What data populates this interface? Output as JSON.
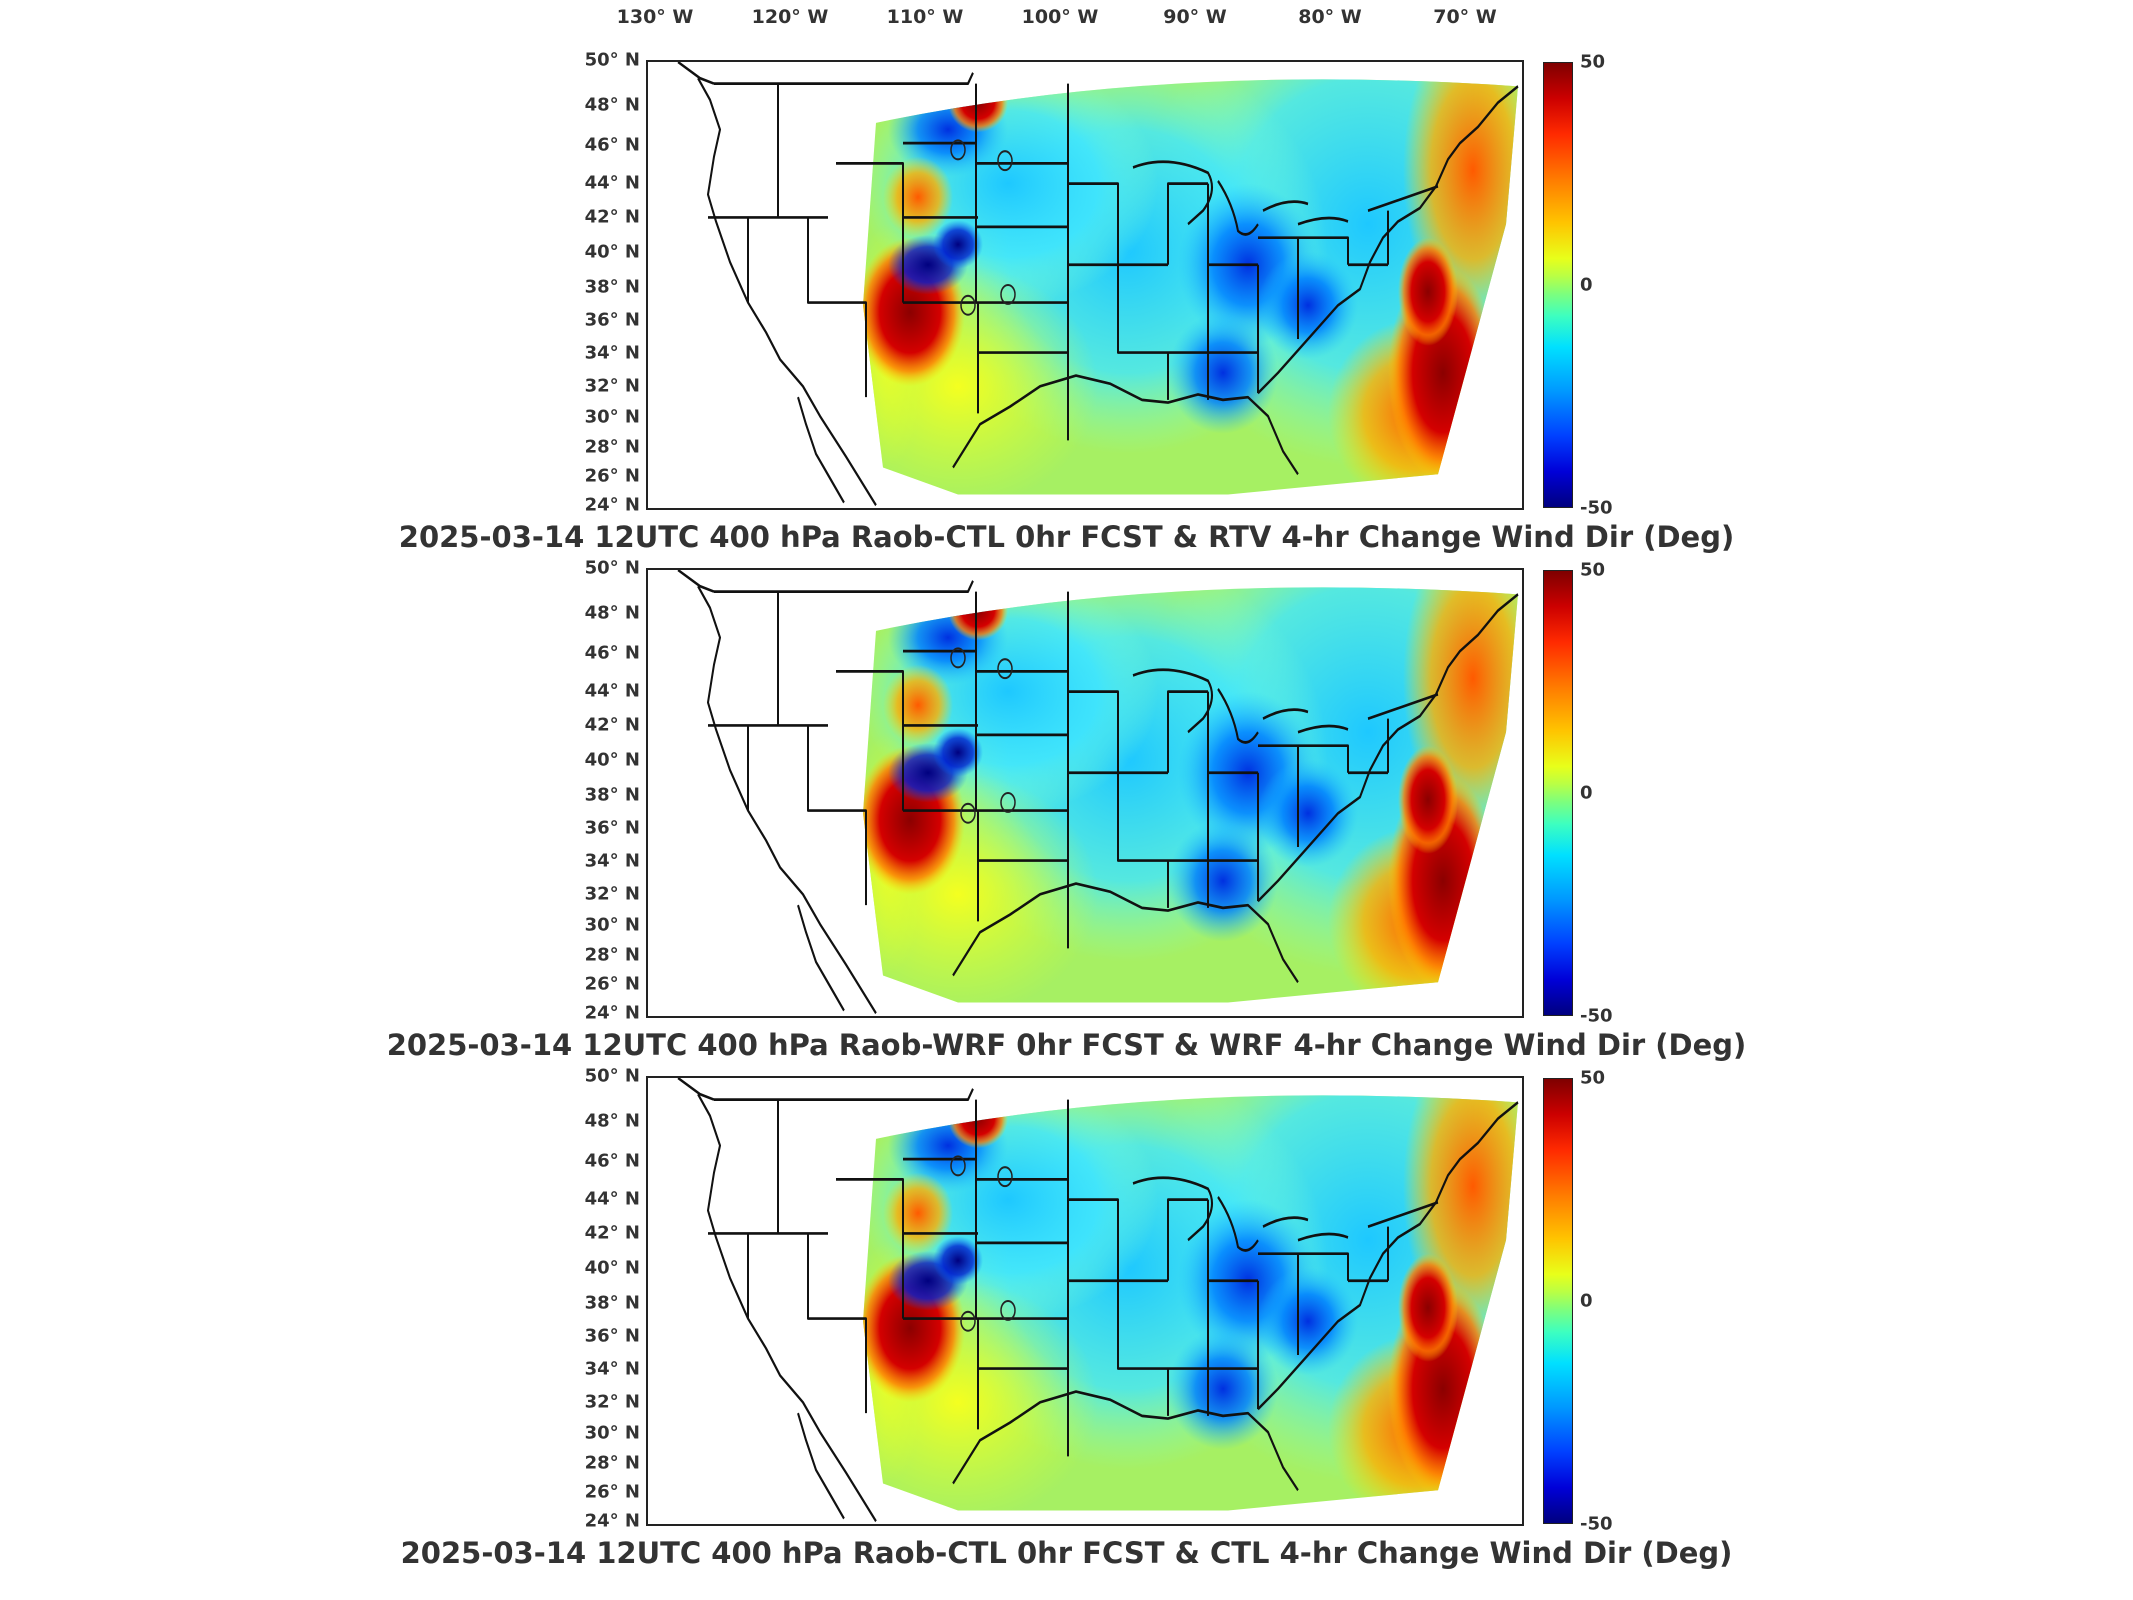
{
  "longitude_labels": [
    "130° W",
    "120° W",
    "110° W",
    "100° W",
    "90° W",
    "80° W",
    "70° W"
  ],
  "latitude_labels": [
    "50° N",
    "48° N",
    "46° N",
    "44° N",
    "42° N",
    "40° N",
    "38° N",
    "36° N",
    "34° N",
    "32° N",
    "30° N",
    "28° N",
    "26° N",
    "24° N"
  ],
  "colorbar": {
    "max_label": "50",
    "mid_label": "0",
    "min_label": "-50"
  },
  "panels": [
    {
      "title": "2025-03-14 12UTC 400 hPa Raob-CTL 0hr FCST & RTV 4-hr Change Wind Dir (Deg)"
    },
    {
      "title": "2025-03-14 12UTC 400 hPa Raob-WRF 0hr FCST & WRF 4-hr Change Wind Dir (Deg)"
    },
    {
      "title": "2025-03-14 12UTC 400 hPa Raob-CTL 0hr FCST & CTL 4-hr Change Wind Dir (Deg)"
    }
  ],
  "colors": {
    "field_background": "#a6f063",
    "positive_max": "#8b0000",
    "negative_max": "#00007f",
    "border": "#111111"
  }
}
